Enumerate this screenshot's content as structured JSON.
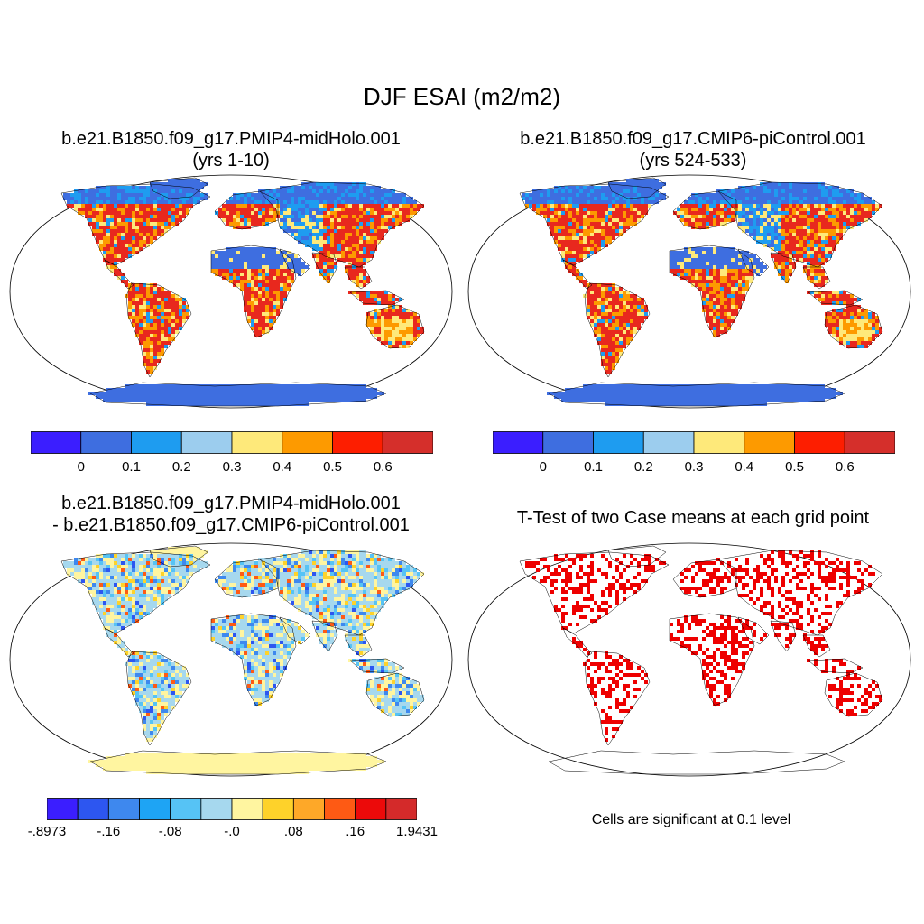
{
  "figure": {
    "title": "DJF ESAI (m2/m2)"
  },
  "panels": {
    "top_left": {
      "title_line1": "b.e21.B1850.f09_g17.PMIP4-midHolo.001",
      "title_line2": "(yrs 1-10)"
    },
    "top_right": {
      "title_line1": "b.e21.B1850.f09_g17.CMIP6-piControl.001",
      "title_line2": "(yrs 524-533)"
    },
    "bottom_left": {
      "title_line1": "b.e21.B1850.f09_g17.PMIP4-midHolo.001",
      "title_line2": "- b.e21.B1850.f09_g17.CMIP6-piControl.001"
    },
    "bottom_right": {
      "title_line1": "T-Test of two Case means at each grid point",
      "note": "Cells are significant at 0.1 level"
    }
  },
  "colorbar_abs": {
    "colors": [
      "#3b1eff",
      "#3e6ee0",
      "#1e9cf0",
      "#9ccdee",
      "#fee97a",
      "#fd9a00",
      "#fd1e00",
      "#d52f2b"
    ],
    "labels": [
      "0",
      "0.1",
      "0.2",
      "0.3",
      "0.4",
      "0.5",
      "0.6"
    ]
  },
  "colorbar_diff": {
    "colors": [
      "#3b1eff",
      "#2d56f0",
      "#3e88ee",
      "#1ea4f4",
      "#56c3f5",
      "#a6d8ee",
      "#fff5a0",
      "#fed22a",
      "#fea828",
      "#fe5a14",
      "#ec0a0a",
      "#d42a2a"
    ],
    "labels": [
      "-.8973",
      "-.16",
      "-.08",
      "-.0",
      ".08",
      ".16",
      "1.9431"
    ]
  },
  "colors": {
    "land_high": "#e8281e",
    "land_mid": "#fd9a00",
    "land_low": "#fee97a",
    "desert": "#3e6ee0",
    "snow": "#3e6ee0",
    "cold": "#1e9cf0",
    "diff_base": "#a6d8ee",
    "diff_pos": "#fff5a0",
    "sig": "#ee0000"
  }
}
